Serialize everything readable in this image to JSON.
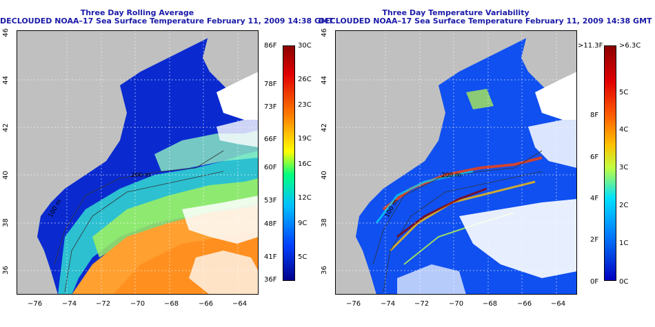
{
  "left_panel": {
    "title_line1": "Three Day Rolling Average",
    "title_line2": "DECLOUDED NOAA–17 Sea Surface Temperature February 11, 2009 14:38 GMT",
    "contour_labels": [
      "100 m",
      "200 m"
    ],
    "colorbar_f": [
      "86F",
      "78F",
      "73F",
      "66F",
      "60F",
      "53F",
      "48F",
      "41F",
      "36F"
    ],
    "colorbar_c": [
      "30C",
      "26C",
      "23C",
      "19C",
      "16C",
      "12C",
      "9C",
      "5C"
    ],
    "colorbar_colors": [
      "#8b0000",
      "#ff8000",
      "#ffff00",
      "#00ff80",
      "#00c0ff",
      "#0040ff",
      "#00008b"
    ]
  },
  "right_panel": {
    "title_line1": "Three Day Temperature Variability",
    "title_line2": "DECLOUDED NOAA–17 Sea Surface Temperature February 11, 2009 14:38 GMT",
    "contour_labels": [
      "100 m",
      "200 m"
    ],
    "colorbar_f": [
      ">11.3F",
      "8F",
      "6F",
      "4F",
      "2F",
      "0F"
    ],
    "colorbar_c": [
      ">6.3C",
      "5C",
      "4C",
      "3C",
      "2C",
      "1C",
      "0C"
    ],
    "colorbar_colors": [
      "#8b0000",
      "#ff4000",
      "#ffc000",
      "#c0ff40",
      "#00e0ff",
      "#0080ff",
      "#0000c0"
    ]
  },
  "axes": {
    "x_ticks": [
      "−76",
      "−74",
      "−72",
      "−70",
      "−68",
      "−66",
      "−64"
    ],
    "y_ticks": [
      "46",
      "44",
      "42",
      "40",
      "38",
      "36"
    ]
  },
  "colors": {
    "land": "#c0c0c0",
    "deep_ocean": "#0a2ad0",
    "title": "#1a1aa8"
  }
}
